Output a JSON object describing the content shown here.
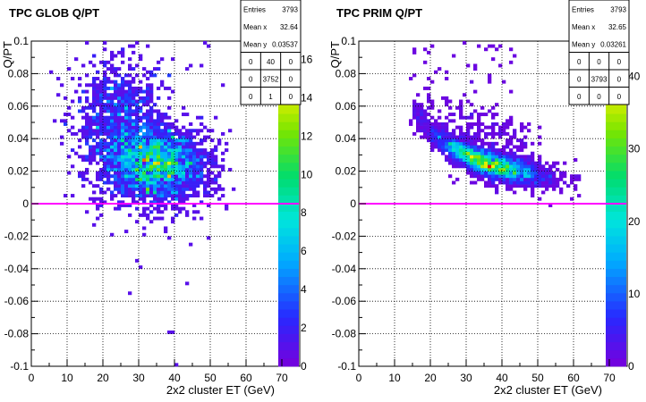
{
  "chart_data": [
    {
      "type": "heatmap",
      "title": "TPC GLOB Q/PT",
      "xlabel": "2x2 cluster ET (GeV)",
      "ylabel": "Q/PT",
      "xlim": [
        0,
        75
      ],
      "ylim": [
        -0.1,
        0.1
      ],
      "x_ticks": [
        "0",
        "10",
        "20",
        "30",
        "40",
        "50",
        "60",
        "70"
      ],
      "y_ticks": [
        "-0.1",
        "-0.08",
        "-0.06",
        "-0.04",
        "-0.02",
        "0",
        "0.02",
        "0.04",
        "0.06",
        "0.08",
        "0.1"
      ],
      "z_ticks": [
        "0",
        "2",
        "4",
        "6",
        "8",
        "10",
        "12",
        "14",
        "16"
      ],
      "zmax": 17,
      "reference_line_y": 0,
      "grid": true,
      "stats": {
        "rows": [
          [
            "Entries",
            "3793"
          ],
          [
            "Mean x",
            "32.64"
          ],
          [
            "Mean y",
            "0.03537"
          ]
        ],
        "grid": [
          [
            "0",
            "40",
            "0"
          ],
          [
            "0",
            "3752",
            "0"
          ],
          [
            "0",
            "1",
            "0"
          ]
        ]
      },
      "blobs": [
        {
          "cx": 35,
          "cy": 0.025,
          "sx": 7,
          "sy": 0.012,
          "w": 1.0
        },
        {
          "cx": 24,
          "cy": 0.05,
          "sx": 6,
          "sy": 0.02,
          "w": 0.5
        }
      ],
      "outliers": [
        [
          38,
          -0.08
        ],
        [
          30,
          -0.04
        ],
        [
          27,
          -0.055
        ],
        [
          29,
          -0.035
        ],
        [
          22,
          -0.02
        ],
        [
          18,
          -0.01
        ],
        [
          48,
          0.008
        ],
        [
          43,
          -0.05
        ],
        [
          39,
          -0.08
        ],
        [
          40,
          -0.1
        ],
        [
          32,
          -0.01
        ],
        [
          45,
          -0.005
        ]
      ],
      "seed": 7,
      "n": 3400
    },
    {
      "type": "heatmap",
      "title": "TPC PRIM  Q/PT",
      "xlabel": "2x2 cluster ET (GeV)",
      "ylabel": "Q/PT",
      "xlim": [
        0,
        75
      ],
      "ylim": [
        -0.1,
        0.1
      ],
      "x_ticks": [
        "0",
        "10",
        "20",
        "30",
        "40",
        "50",
        "60",
        "70"
      ],
      "y_ticks": [
        "-0.1",
        "-0.08",
        "-0.06",
        "-0.04",
        "-0.02",
        "0",
        "0.02",
        "0.04",
        "0.06",
        "0.08",
        "0.1"
      ],
      "z_ticks": [
        "0",
        "10",
        "20",
        "30",
        "40"
      ],
      "zmax": 45,
      "reference_line_y": 0,
      "grid": true,
      "stats": {
        "rows": [
          [
            "Entries",
            "3793"
          ],
          [
            "Mean x",
            "32.65"
          ],
          [
            "Mean y",
            "0.03261"
          ]
        ],
        "grid": [
          [
            "0",
            "0",
            "0"
          ],
          [
            "0",
            "3793",
            "0"
          ],
          [
            "0",
            "0",
            "0"
          ]
        ]
      },
      "band": {
        "x0": 15,
        "x1": 62,
        "k": 0.9,
        "scatter": 0.004
      },
      "seed": 11,
      "n": 3793
    }
  ]
}
